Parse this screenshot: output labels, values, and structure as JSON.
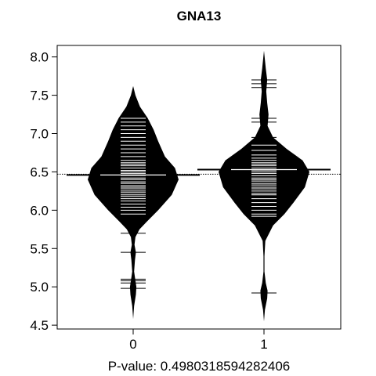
{
  "chart_data": {
    "type": "beanplot",
    "title": "GNA13",
    "xlabel": "",
    "ylabel": "",
    "footer": "P-value: 0.4980318594282406",
    "ylim": [
      4.45,
      8.15
    ],
    "yticks": [
      4.5,
      5.0,
      5.5,
      6.0,
      6.5,
      7.0,
      7.5,
      8.0
    ],
    "ytick_labels": [
      "4.5",
      "5.0",
      "5.5",
      "6.0",
      "6.5",
      "7.0",
      "7.5",
      "8.0"
    ],
    "overall_mean": 6.47,
    "groups": [
      {
        "label": "0",
        "mean": 6.46,
        "density": [
          [
            4.58,
            0.0
          ],
          [
            4.75,
            0.02
          ],
          [
            4.9,
            0.06
          ],
          [
            5.0,
            0.07
          ],
          [
            5.08,
            0.05
          ],
          [
            5.2,
            0.02
          ],
          [
            5.35,
            0.04
          ],
          [
            5.45,
            0.06
          ],
          [
            5.55,
            0.03
          ],
          [
            5.65,
            0.05
          ],
          [
            5.75,
            0.14
          ],
          [
            5.85,
            0.3
          ],
          [
            6.0,
            0.55
          ],
          [
            6.2,
            0.85
          ],
          [
            6.4,
            1.0
          ],
          [
            6.55,
            0.92
          ],
          [
            6.7,
            0.7
          ],
          [
            6.9,
            0.55
          ],
          [
            7.05,
            0.45
          ],
          [
            7.2,
            0.32
          ],
          [
            7.35,
            0.15
          ],
          [
            7.5,
            0.05
          ],
          [
            7.62,
            0.0
          ]
        ],
        "observations": [
          4.98,
          5.05,
          5.08,
          5.1,
          5.45,
          5.7,
          5.95,
          6.0,
          6.04,
          6.08,
          6.12,
          6.15,
          6.18,
          6.2,
          6.23,
          6.25,
          6.28,
          6.3,
          6.32,
          6.35,
          6.37,
          6.4,
          6.42,
          6.45,
          6.48,
          6.5,
          6.52,
          6.55,
          6.58,
          6.6,
          6.62,
          6.65,
          6.7,
          6.75,
          6.8,
          6.85,
          6.9,
          6.95,
          7.0,
          7.05,
          7.1,
          7.15,
          7.2
        ]
      },
      {
        "label": "1",
        "mean": 6.53,
        "density": [
          [
            4.55,
            0.0
          ],
          [
            4.7,
            0.02
          ],
          [
            4.85,
            0.07
          ],
          [
            4.95,
            0.08
          ],
          [
            5.05,
            0.04
          ],
          [
            5.2,
            0.01
          ],
          [
            5.4,
            0.01
          ],
          [
            5.6,
            0.03
          ],
          [
            5.8,
            0.2
          ],
          [
            5.95,
            0.45
          ],
          [
            6.1,
            0.65
          ],
          [
            6.3,
            0.9
          ],
          [
            6.5,
            1.0
          ],
          [
            6.65,
            0.85
          ],
          [
            6.8,
            0.5
          ],
          [
            6.95,
            0.2
          ],
          [
            7.1,
            0.08
          ],
          [
            7.25,
            0.1
          ],
          [
            7.4,
            0.07
          ],
          [
            7.55,
            0.05
          ],
          [
            7.7,
            0.07
          ],
          [
            7.85,
            0.04
          ],
          [
            8.08,
            0.0
          ]
        ],
        "observations": [
          4.92,
          5.92,
          5.95,
          6.0,
          6.05,
          6.1,
          6.15,
          6.2,
          6.22,
          6.25,
          6.28,
          6.3,
          6.33,
          6.35,
          6.38,
          6.4,
          6.42,
          6.45,
          6.48,
          6.5,
          6.52,
          6.55,
          6.58,
          6.6,
          6.62,
          6.65,
          6.68,
          6.72,
          6.78,
          6.85,
          6.95,
          7.15,
          7.2,
          7.6,
          7.65,
          7.7
        ]
      }
    ]
  }
}
